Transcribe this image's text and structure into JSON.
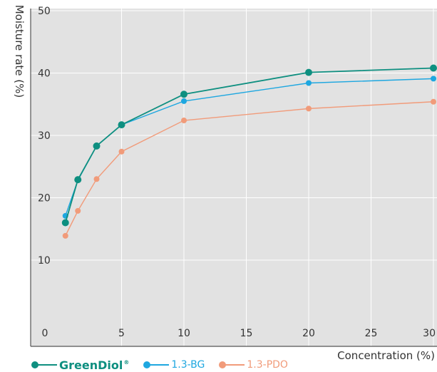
{
  "chart_data": {
    "type": "line",
    "xlabel": "Concentration (%)",
    "ylabel": "Moisture rate (%)",
    "xlim": [
      0,
      30
    ],
    "ylim": [
      0,
      50
    ],
    "xticks": [
      0,
      5,
      10,
      15,
      20,
      25,
      30
    ],
    "yticks": [
      10,
      20,
      30,
      40,
      50
    ],
    "grid": true,
    "legend_position": "bottom-left",
    "colors": {
      "background": "#e2e2e2",
      "grid": "#ffffff",
      "axis": "#555555"
    },
    "series": [
      {
        "name": "GreenDiol",
        "name_mark": "®",
        "color": "#0e8f80",
        "x": [
          0.5,
          1.5,
          3,
          5,
          10,
          20,
          30
        ],
        "y": [
          16.0,
          22.9,
          28.3,
          31.7,
          36.6,
          40.1,
          40.8
        ]
      },
      {
        "name": "1.3-BG",
        "color": "#1ea7e0",
        "x": [
          0.5,
          1.5,
          3,
          5,
          10,
          20,
          30
        ],
        "y": [
          17.1,
          22.8,
          28.3,
          31.7,
          35.5,
          38.4,
          39.1
        ]
      },
      {
        "name": "1.3-PDO",
        "color": "#f19b7a",
        "x": [
          0.5,
          1.5,
          3,
          5,
          10,
          20,
          30
        ],
        "y": [
          13.9,
          17.9,
          23.0,
          27.4,
          32.4,
          34.3,
          35.4
        ]
      }
    ]
  }
}
